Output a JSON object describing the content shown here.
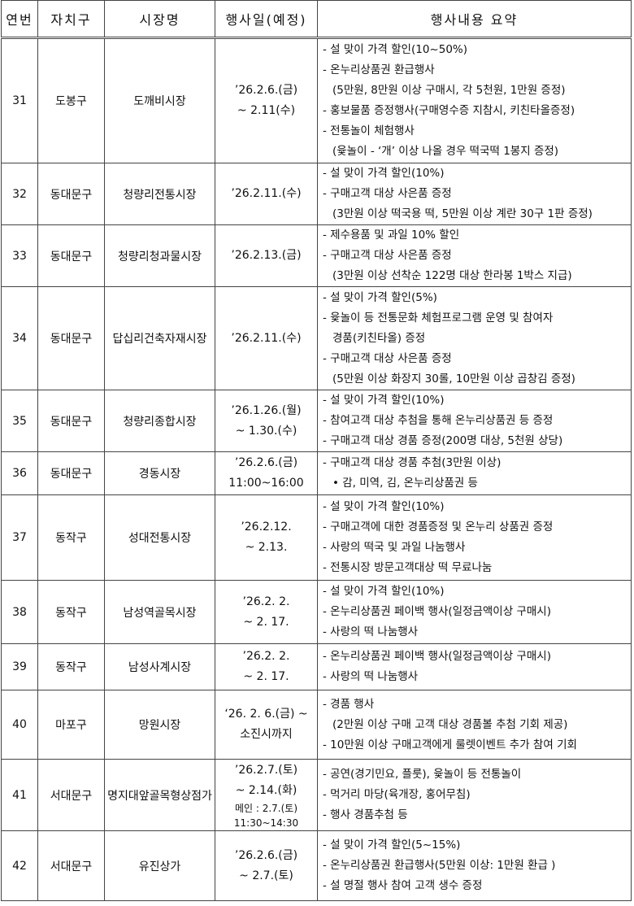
{
  "header": [
    "연번",
    "자치구",
    "시장명",
    "행사일(예정)",
    "행사내용 요약"
  ],
  "rows": [
    {
      "no": 31,
      "district": "도봉구",
      "market": "도깨비시장",
      "date": [
        "’26.2.6.(금)",
        "~ 2.11(수)"
      ],
      "content": [
        "- 설 맞이 가격 할인(10~50%)",
        "- 온누리상품권 환급행사",
        "(5만원, 8만원 이상 구매시, 각 5천원, 1만원 증정)",
        "- 홍보물품 증정행사(구매영수증 지참시, 키친타올증정)",
        "- 전통놀이 체험행사",
        "(윷놀이 - ‘개’ 이상 나올 경우 떡국떡 1봉지 증정)"
      ]
    },
    {
      "no": 32,
      "district": "동대문구",
      "market": "청량리전통시장",
      "date": [
        "’26.2.11.(수)"
      ],
      "content": [
        "- 설 맞이 가격 할인(10%)",
        "- 구매고객 대상 사은품 증정",
        "(3만원 이상 떡국용 떡, 5만원 이상 계란 30구 1판 증정)"
      ]
    },
    {
      "no": 33,
      "district": "동대문구",
      "market": "청량리청과물시장",
      "date": [
        "’26.2.13.(금)"
      ],
      "content": [
        "- 제수용품 및 과일 10% 할인",
        "- 구매고객 대상 사은품 증정",
        "(3만원 이상 선착순 122명 대상 한라봉 1박스 지급)"
      ]
    },
    {
      "no": 34,
      "district": "동대문구",
      "market": "답십리건축자재시장",
      "date": [
        "’26.2.11.(수)"
      ],
      "content": [
        "- 설 맞이 가격 할인(5%)",
        "- 윷놀이 등 전통문화 체험프로그램 운영 및 참여자",
        "경품(키친타올) 증정",
        "- 구매고객 대상 사은품 증정",
        "(5만원 이상 화장지 30롤, 10만원 이상 곱창김 증정)"
      ]
    },
    {
      "no": 35,
      "district": "동대문구",
      "market": "청량리종합시장",
      "date": [
        "’26.1.26.(월)",
        "~ 1.30.(수)"
      ],
      "content": [
        "- 설 맞이 가격 할인(10%)",
        "- 참여고객 대상 추첨을 통해 온누리상품권 등 증정",
        "- 구매고객 대상 경품 증정(200명 대상, 5천원 상당)"
      ]
    },
    {
      "no": 36,
      "district": "동대문구",
      "market": "경동시장",
      "date": [
        "’26.2.6.(금)",
        "11:00~16:00"
      ],
      "content": [
        "- 구매고객 대상 경품 추첨(3만원 이상)",
        "• 감, 미역, 김, 온누리상품권 등"
      ]
    },
    {
      "no": 37,
      "district": "동작구",
      "market": "성대전통시장",
      "date": [
        "’26.2.12.",
        "~ 2.13."
      ],
      "content": [
        "- 설 맞이 가격 할인(10%)",
        "- 구매고객에 대한 경품증정 및 온누리 상품권 증정",
        "- 사랑의 떡국 및 과일 나눔행사",
        "- 전통시장 방문고객대상 떡 무료나눔"
      ]
    },
    {
      "no": 38,
      "district": "동작구",
      "market": "남성역골목시장",
      "date": [
        "’26.2. 2.",
        "~ 2. 17."
      ],
      "content": [
        "- 설 맞이 가격 할인(10%)",
        "- 온누리상품권 페이백 행사(일정금액이상 구매시)",
        "- 사랑의 떡 나눔행사"
      ]
    },
    {
      "no": 39,
      "district": "동작구",
      "market": "남성사계시장",
      "date": [
        "’26.2. 2.",
        "~ 2. 17."
      ],
      "content": [
        "- 온누리상품권 페이백 행사(일정금액이상 구매시)",
        "- 사랑의 떡 나눔행사"
      ]
    },
    {
      "no": 40,
      "district": "마포구",
      "market": "망원시장",
      "date": [
        "‘26. 2. 6.(금) ~",
        "소진시까지"
      ],
      "content": [
        "- 경품 행사",
        "(2만원 이상 구매 고객 대상 경품볼 추첨 기회 제공)",
        "- 10만원 이상 구매고객에게 룰렛이벤트 추가 참여 기회"
      ]
    },
    {
      "no": 41,
      "district": "서대문구",
      "market": "명지대앞골목형상점가",
      "date": [
        "’26.2.7.(토)",
        "~ 2.14.(화)",
        "메인 : 2.7.(토)",
        "11:30~14:30"
      ],
      "content": [
        "- 공연(경기민요, 플룻), 윷놀이 등 전통놀이",
        "- 먹거리 마당(육개장, 홍어무침)",
        "- 행사 경품추첨 등"
      ]
    },
    {
      "no": 42,
      "district": "서대문구",
      "market": "유진상가",
      "date": [
        "’26.2.6.(금)",
        "~ 2.7.(토)"
      ],
      "content": [
        "- 설 맞이 가격 할인(5~15%)",
        "- 온누리상품권 환급행사(5만원 이상: 1만원 환급 )",
        "- 설 명절 행사 참여 고객 생수 증정"
      ]
    }
  ]
}
